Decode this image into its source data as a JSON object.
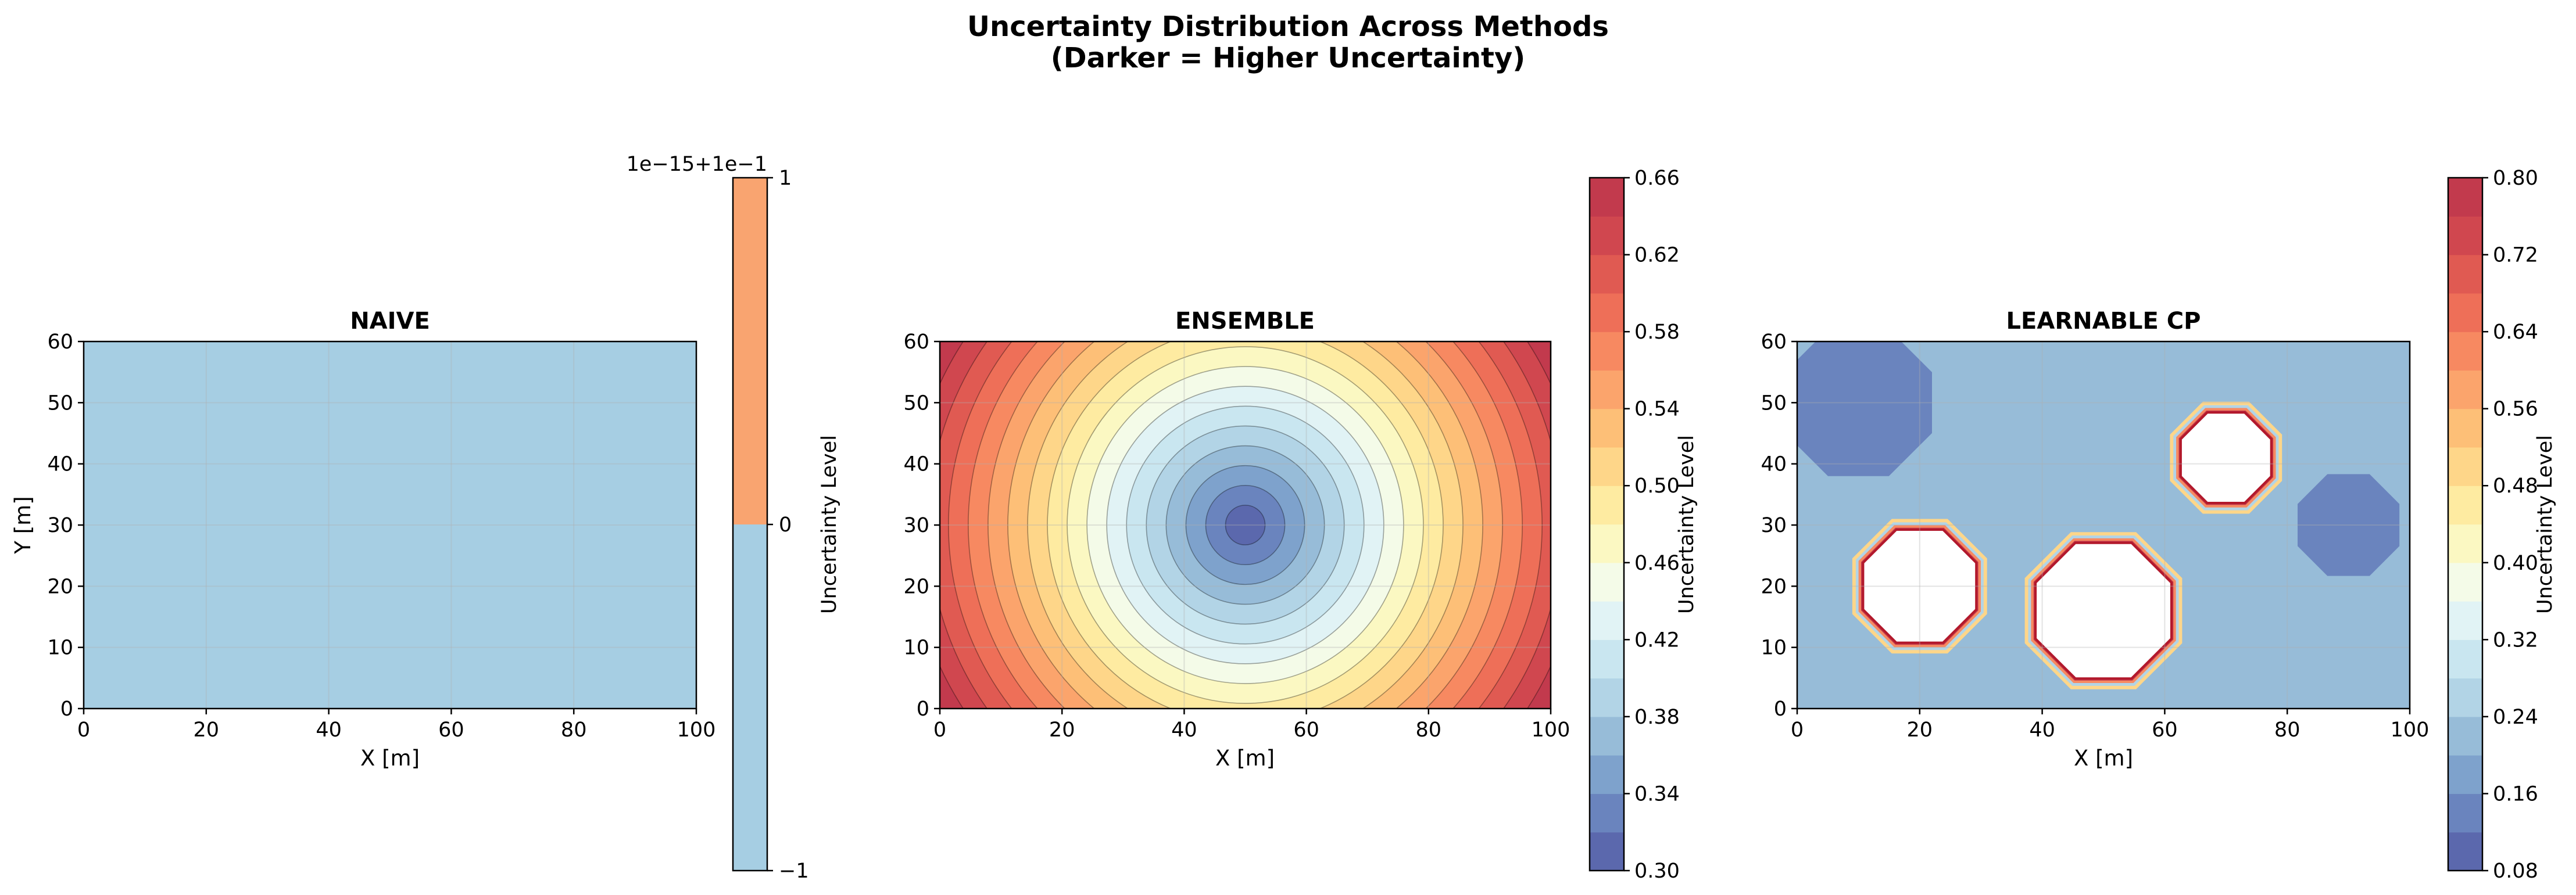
{
  "figure": {
    "title_line1": "Uncertainty Distribution Across Methods",
    "title_line2": "(Darker = Higher Uncertainty)"
  },
  "chart_data": [
    {
      "type": "heatmap",
      "title": "NAIVE",
      "xlabel": "X [m]",
      "ylabel": "Y [m]",
      "xlim": [
        0,
        100
      ],
      "ylim": [
        0,
        60
      ],
      "xticks": [
        "0",
        "20",
        "40",
        "60",
        "80",
        "100"
      ],
      "yticks": [
        "0",
        "10",
        "20",
        "30",
        "40",
        "50",
        "60"
      ],
      "grid": true,
      "value_description": "uniform field",
      "uniform_value": 0.1,
      "colorbar": {
        "label": "Uncertainty Level",
        "offset_text": "1e−15+1e−1",
        "ticks": [
          "−1",
          "0",
          "1"
        ],
        "bands": [
          {
            "from": -1,
            "to": 0,
            "color": "#a6cee3"
          },
          {
            "from": 0,
            "to": 1,
            "color": "#f9a470"
          }
        ]
      }
    },
    {
      "type": "heatmap",
      "title": "ENSEMBLE",
      "xlabel": "X [m]",
      "ylabel": "",
      "xlim": [
        0,
        100
      ],
      "ylim": [
        0,
        60
      ],
      "xticks": [
        "0",
        "20",
        "40",
        "60",
        "80",
        "100"
      ],
      "yticks": [
        "0",
        "10",
        "20",
        "30",
        "40",
        "50",
        "60"
      ],
      "grid": true,
      "field": {
        "kind": "radial",
        "center": [
          50,
          30
        ],
        "min_value": 0.3,
        "max_value": 0.66
      },
      "colorbar": {
        "label": "Uncertainty Level",
        "min": 0.3,
        "max": 0.66,
        "levels": 18,
        "ticks": [
          "0.30",
          "0.34",
          "0.38",
          "0.42",
          "0.46",
          "0.50",
          "0.54",
          "0.58",
          "0.62",
          "0.66"
        ]
      }
    },
    {
      "type": "heatmap",
      "title": "LEARNABLE CP",
      "xlabel": "X [m]",
      "ylabel": "",
      "xlim": [
        0,
        100
      ],
      "ylim": [
        0,
        60
      ],
      "xticks": [
        "0",
        "20",
        "40",
        "60",
        "80",
        "100"
      ],
      "yticks": [
        "0",
        "10",
        "20",
        "30",
        "40",
        "50",
        "60"
      ],
      "grid": true,
      "background_value": 0.2,
      "low_regions": [
        {
          "center": [
            10,
            50
          ],
          "radius": 13,
          "value": 0.13
        },
        {
          "center": [
            90,
            30
          ],
          "radius": 9,
          "value": 0.13
        }
      ],
      "masked_regions": [
        {
          "center": [
            20,
            20
          ],
          "radius": 10
        },
        {
          "center": [
            50,
            16
          ],
          "radius": 12
        },
        {
          "center": [
            70,
            41
          ],
          "radius": 8
        }
      ],
      "colorbar": {
        "label": "Uncertainty Level",
        "min": 0.08,
        "max": 0.8,
        "levels": 18,
        "ticks": [
          "0.08",
          "0.16",
          "0.24",
          "0.32",
          "0.40",
          "0.48",
          "0.56",
          "0.64",
          "0.72",
          "0.80"
        ]
      }
    }
  ]
}
